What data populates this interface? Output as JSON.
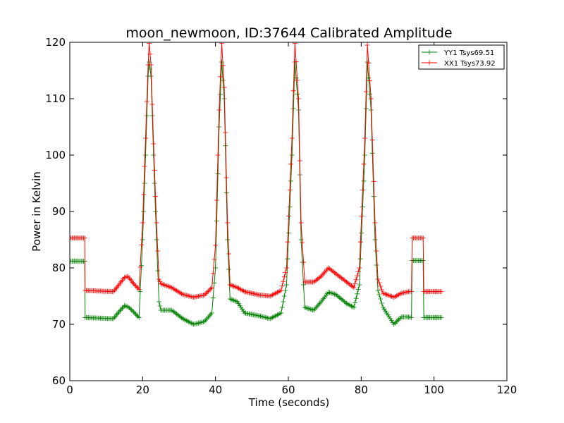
{
  "chart_data": {
    "type": "line",
    "title": "moon_newmoon, ID:37644 Calibrated Amplitude",
    "xlabel": "Time (seconds)",
    "ylabel": "Power in Kelvin",
    "xlim": [
      0,
      120
    ],
    "ylim": [
      60,
      120
    ],
    "xticks": [
      "0",
      "20",
      "40",
      "60",
      "80",
      "100",
      "120"
    ],
    "yticks": [
      "60",
      "70",
      "80",
      "90",
      "100",
      "110",
      "120"
    ],
    "grid": false,
    "legend_position": "top-right",
    "marker": "plus",
    "series": [
      {
        "name": "YY1 Tsys69.51",
        "color": "#008000",
        "points": [
          [
            0,
            81.2
          ],
          [
            4.1,
            81.2
          ],
          [
            4.2,
            71.2
          ],
          [
            12,
            71.0
          ],
          [
            13.5,
            72.2
          ],
          [
            15,
            73.3
          ],
          [
            16,
            73.1
          ],
          [
            17.5,
            72.2
          ],
          [
            19,
            71.2
          ],
          [
            20,
            85
          ],
          [
            20.8,
            100
          ],
          [
            21.5,
            114
          ],
          [
            21.8,
            116.5
          ],
          [
            22.3,
            114
          ],
          [
            23,
            100
          ],
          [
            23.8,
            85
          ],
          [
            24.5,
            74
          ],
          [
            25,
            72.5
          ],
          [
            28,
            72.5
          ],
          [
            31,
            71
          ],
          [
            34,
            70
          ],
          [
            37,
            70.5
          ],
          [
            39,
            72
          ],
          [
            40,
            80
          ],
          [
            41,
            105
          ],
          [
            41.7,
            116.5
          ],
          [
            42.4,
            110
          ],
          [
            43.3,
            85
          ],
          [
            44,
            74.5
          ],
          [
            46,
            74
          ],
          [
            48,
            72
          ],
          [
            52,
            71.5
          ],
          [
            55,
            71
          ],
          [
            58,
            72
          ],
          [
            59.5,
            77
          ],
          [
            61,
            100
          ],
          [
            61.8,
            116.5
          ],
          [
            62.8,
            108
          ],
          [
            63.5,
            85
          ],
          [
            64.5,
            73
          ],
          [
            67,
            72.5
          ],
          [
            69,
            74
          ],
          [
            71,
            75.7
          ],
          [
            73,
            75.3
          ],
          [
            76,
            73.7
          ],
          [
            78,
            73
          ],
          [
            79.5,
            77
          ],
          [
            81,
            100
          ],
          [
            81.7,
            116.5
          ],
          [
            82.7,
            108
          ],
          [
            83.8,
            85
          ],
          [
            84.6,
            76
          ],
          [
            86,
            73
          ],
          [
            89,
            70
          ],
          [
            91,
            71.3
          ],
          [
            93,
            71.3
          ],
          [
            93.8,
            71.2
          ],
          [
            94,
            81.3
          ],
          [
            97,
            81.3
          ],
          [
            97.2,
            71.2
          ],
          [
            102,
            71.2
          ]
        ]
      },
      {
        "name": "XX1 Tsys73.92",
        "color": "#ff0000",
        "points": [
          [
            0,
            85.3
          ],
          [
            4.1,
            85.3
          ],
          [
            4.2,
            76
          ],
          [
            12,
            75.8
          ],
          [
            13.5,
            77
          ],
          [
            15,
            78.3
          ],
          [
            16,
            78.5
          ],
          [
            17.5,
            77.2
          ],
          [
            19,
            76.2
          ],
          [
            20,
            88
          ],
          [
            20.8,
            103
          ],
          [
            21.5,
            116
          ],
          [
            21.8,
            119.8
          ],
          [
            22.3,
            116
          ],
          [
            23,
            102
          ],
          [
            23.8,
            88
          ],
          [
            24.5,
            78
          ],
          [
            25,
            77.2
          ],
          [
            28,
            76.5
          ],
          [
            31,
            75.3
          ],
          [
            34,
            74.8
          ],
          [
            37,
            75.2
          ],
          [
            39,
            76.5
          ],
          [
            40,
            84
          ],
          [
            41,
            108
          ],
          [
            41.7,
            119.8
          ],
          [
            42.4,
            112
          ],
          [
            43.3,
            88
          ],
          [
            44,
            77
          ],
          [
            46,
            76.5
          ],
          [
            48,
            75.8
          ],
          [
            52,
            75.2
          ],
          [
            55,
            75
          ],
          [
            58,
            76
          ],
          [
            59.5,
            80
          ],
          [
            61,
            103
          ],
          [
            61.8,
            119.8
          ],
          [
            62.8,
            110
          ],
          [
            63.5,
            88
          ],
          [
            64.5,
            77.5
          ],
          [
            67,
            77.5
          ],
          [
            69,
            78.5
          ],
          [
            71,
            80
          ],
          [
            73,
            79
          ],
          [
            76,
            77.5
          ],
          [
            78,
            76.5
          ],
          [
            79.5,
            80
          ],
          [
            81,
            103
          ],
          [
            81.7,
            119.5
          ],
          [
            82.7,
            110
          ],
          [
            83.8,
            88
          ],
          [
            84.6,
            78
          ],
          [
            86,
            75.5
          ],
          [
            89,
            74.8
          ],
          [
            91,
            75.5
          ],
          [
            93,
            75.8
          ],
          [
            93.8,
            75.8
          ],
          [
            94,
            85.3
          ],
          [
            97,
            85.3
          ],
          [
            97.2,
            75.8
          ],
          [
            102,
            75.8
          ]
        ]
      }
    ]
  }
}
